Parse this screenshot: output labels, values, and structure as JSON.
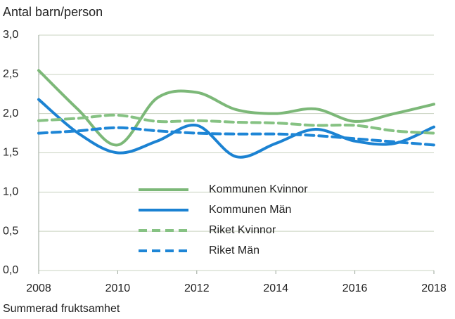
{
  "chart_data": {
    "type": "line",
    "title": "Antal barn/person",
    "xlabel": "Summerad fruktsamhet",
    "x": [
      2008,
      2009,
      2010,
      2011,
      2012,
      2013,
      2014,
      2015,
      2016,
      2017,
      2018
    ],
    "xlim": [
      2008,
      2018
    ],
    "xticks": [
      2008,
      2010,
      2012,
      2014,
      2016,
      2018
    ],
    "ylim": [
      0,
      3
    ],
    "yticks": [
      {
        "value": 0,
        "label": "0,0"
      },
      {
        "value": 0.5,
        "label": "0,5"
      },
      {
        "value": 1,
        "label": "1,0"
      },
      {
        "value": 1.5,
        "label": "1,5"
      },
      {
        "value": 2,
        "label": "2,0"
      },
      {
        "value": 2.5,
        "label": "2,5"
      },
      {
        "value": 3,
        "label": "3,0"
      }
    ],
    "grid": true,
    "series": [
      {
        "name": "Kommunen Kvinnor",
        "color": "#7cb878",
        "dashed": false,
        "values": [
          2.55,
          2.05,
          1.6,
          2.2,
          2.27,
          2.05,
          2.0,
          2.06,
          1.9,
          2.0,
          2.12
        ]
      },
      {
        "name": "Kommunen Män",
        "color": "#1b82d2",
        "dashed": false,
        "values": [
          2.18,
          1.75,
          1.5,
          1.65,
          1.85,
          1.45,
          1.62,
          1.8,
          1.65,
          1.62,
          1.83
        ]
      },
      {
        "name": "Riket Kvinnor",
        "color": "#86c283",
        "dashed": true,
        "values": [
          1.91,
          1.94,
          1.98,
          1.9,
          1.91,
          1.89,
          1.88,
          1.85,
          1.85,
          1.78,
          1.75
        ]
      },
      {
        "name": "Riket Män",
        "color": "#1e86d6",
        "dashed": true,
        "values": [
          1.75,
          1.78,
          1.82,
          1.78,
          1.75,
          1.74,
          1.74,
          1.72,
          1.68,
          1.64,
          1.6
        ]
      }
    ]
  }
}
